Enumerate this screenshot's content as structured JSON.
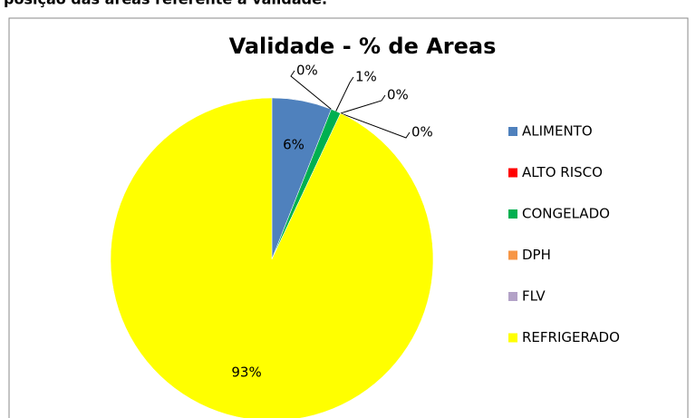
{
  "header": "posição das áreas referente à validade.",
  "chart_data": {
    "type": "pie",
    "title": "Validade - % de Areas",
    "categories": [
      "ALIMENTO",
      "ALTO RISCO",
      "CONGELADO",
      "DPH",
      "FLV",
      "REFRIGERADO"
    ],
    "values": [
      6,
      0,
      1,
      0,
      0,
      93
    ],
    "value_labels": [
      "6%",
      "0%",
      "1%",
      "0%",
      "0%",
      "93%"
    ],
    "colors": [
      "#4f81bd",
      "#ff0000",
      "#00b050",
      "#f79646",
      "#b3a2c7",
      "#ffff00"
    ],
    "legend": "right"
  }
}
